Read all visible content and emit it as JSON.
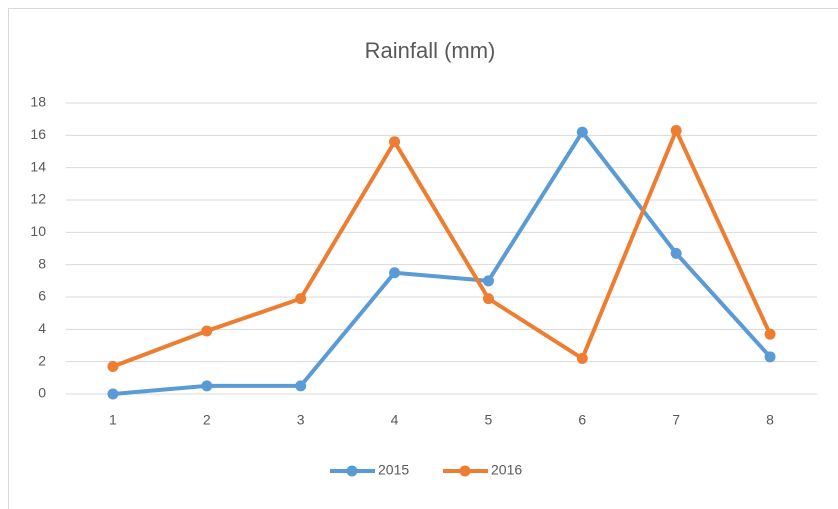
{
  "chart_data": {
    "type": "line",
    "title": "Rainfall (mm)",
    "categories": [
      "1",
      "2",
      "3",
      "4",
      "5",
      "6",
      "7",
      "8"
    ],
    "series": [
      {
        "name": "2015",
        "color": "#5b9bd5",
        "values": [
          0,
          0.5,
          0.5,
          7.5,
          7,
          16.2,
          8.7,
          2.3
        ]
      },
      {
        "name": "2016",
        "color": "#ed7d31",
        "values": [
          1.7,
          3.9,
          5.9,
          15.6,
          5.9,
          2.2,
          16.3,
          3.7
        ]
      }
    ],
    "ylim": [
      0,
      18
    ],
    "yticks": [
      0,
      2,
      4,
      6,
      8,
      10,
      12,
      14,
      16,
      18
    ],
    "grid": true,
    "legend": "bottom"
  }
}
